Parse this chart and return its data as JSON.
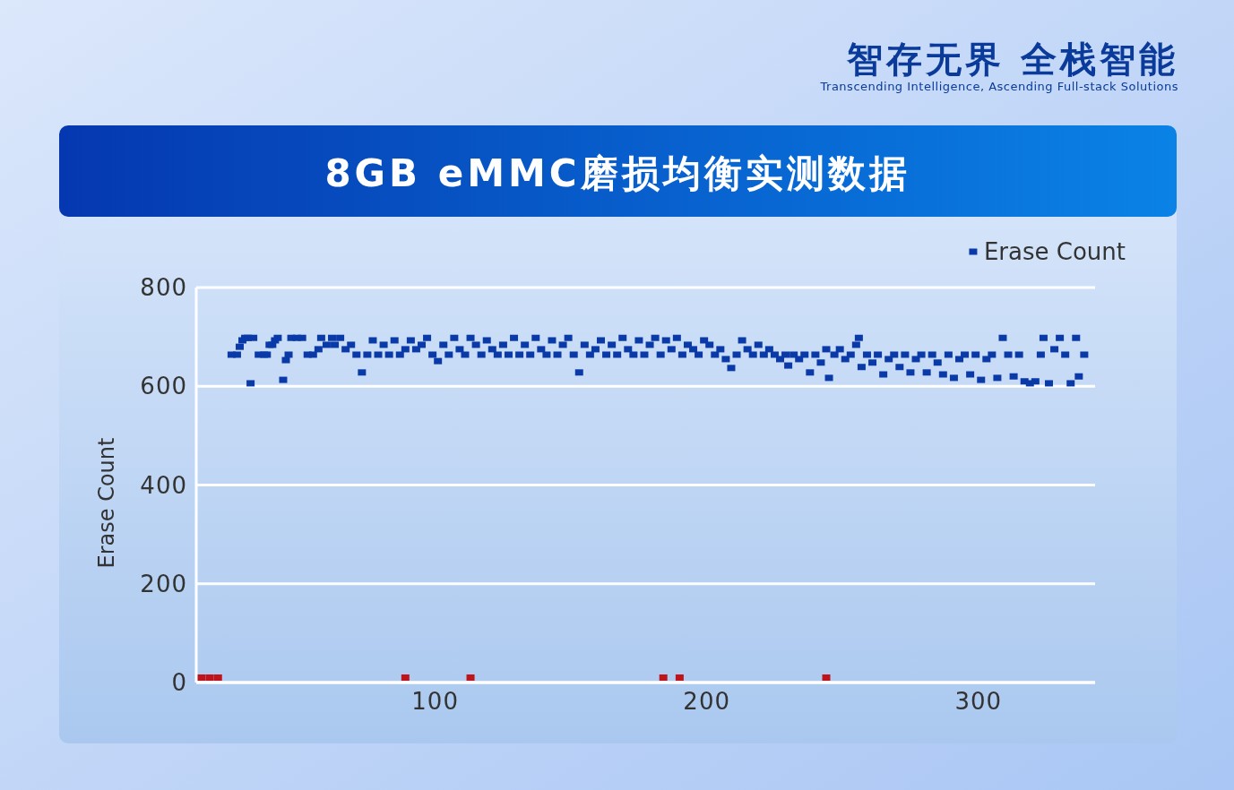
{
  "chart_data": {
    "type": "scatter",
    "title": "8GB eMMC磨损均衡实测数据",
    "annotations": [
      "智存无界  全栈智能",
      "Transcending Intelligence, Ascending Full-stack Solutions"
    ],
    "ylabel": "Erase Count",
    "xlim": [
      12,
      343
    ],
    "xticks": [
      100,
      200,
      300
    ],
    "ylim": [
      0,
      800
    ],
    "yticks": [
      0,
      200,
      400,
      600,
      800
    ],
    "grid": "y",
    "legend": "top right",
    "marker": "square",
    "series": [
      {
        "name": "Erase Count",
        "color": "#0a3aa8",
        "x": [
          25,
          27,
          28,
          29,
          30,
          31,
          32,
          33,
          35,
          37,
          38,
          39,
          40,
          41,
          42,
          44,
          45,
          46,
          47,
          49,
          51,
          53,
          55,
          57,
          58,
          60,
          62,
          63,
          65,
          67,
          69,
          71,
          73,
          75,
          77,
          79,
          81,
          83,
          85,
          87,
          89,
          91,
          93,
          95,
          97,
          99,
          101,
          103,
          105,
          107,
          109,
          111,
          113,
          115,
          117,
          119,
          121,
          123,
          125,
          127,
          129,
          131,
          133,
          135,
          137,
          139,
          141,
          143,
          145,
          147,
          149,
          151,
          153,
          155,
          157,
          159,
          161,
          163,
          165,
          167,
          169,
          171,
          173,
          175,
          177,
          179,
          181,
          183,
          185,
          187,
          189,
          191,
          193,
          195,
          197,
          199,
          201,
          203,
          205,
          207,
          209,
          211,
          213,
          215,
          217,
          219,
          221,
          223,
          225,
          227,
          229,
          230,
          232,
          234,
          236,
          238,
          240,
          242,
          244,
          245,
          247,
          249,
          251,
          253,
          255,
          256,
          257,
          259,
          261,
          263,
          265,
          267,
          269,
          271,
          273,
          275,
          277,
          279,
          281,
          283,
          285,
          287,
          289,
          291,
          293,
          295,
          297,
          299,
          301,
          303,
          305,
          307,
          309,
          311,
          313,
          315,
          317,
          319,
          321,
          323,
          324,
          326,
          328,
          330,
          332,
          334,
          336,
          337,
          339
        ],
        "values": [
          664,
          664,
          680,
          693,
          698,
          698,
          606,
          698,
          664,
          664,
          664,
          684,
          684,
          693,
          698,
          613,
          653,
          664,
          698,
          698,
          698,
          664,
          664,
          675,
          698,
          684,
          698,
          684,
          698,
          675,
          684,
          664,
          628,
          664,
          693,
          664,
          684,
          664,
          693,
          664,
          675,
          693,
          675,
          684,
          698,
          664,
          651,
          684,
          664,
          698,
          675,
          664,
          698,
          684,
          664,
          693,
          675,
          664,
          684,
          664,
          698,
          664,
          684,
          664,
          698,
          675,
          664,
          693,
          664,
          684,
          698,
          664,
          628,
          684,
          664,
          675,
          693,
          664,
          684,
          664,
          698,
          675,
          664,
          693,
          664,
          684,
          698,
          664,
          693,
          675,
          698,
          664,
          684,
          675,
          664,
          693,
          684,
          664,
          675,
          655,
          637,
          664,
          693,
          675,
          664,
          684,
          664,
          675,
          664,
          655,
          664,
          642,
          664,
          655,
          664,
          628,
          664,
          648,
          675,
          617,
          664,
          675,
          655,
          664,
          684,
          698,
          639,
          664,
          648,
          664,
          624,
          655,
          664,
          639,
          664,
          628,
          655,
          664,
          628,
          664,
          648,
          624,
          664,
          617,
          655,
          664,
          624,
          664,
          613,
          655,
          664,
          617,
          698,
          664,
          620,
          664,
          610,
          606,
          610,
          664,
          698,
          606,
          675,
          698,
          664,
          606,
          698,
          620,
          664
        ]
      },
      {
        "color": "#c0141c",
        "x": [
          14,
          17,
          20,
          89,
          113,
          184,
          190,
          244
        ],
        "values": [
          10,
          10,
          10,
          10,
          10,
          10,
          10,
          10
        ]
      }
    ]
  }
}
